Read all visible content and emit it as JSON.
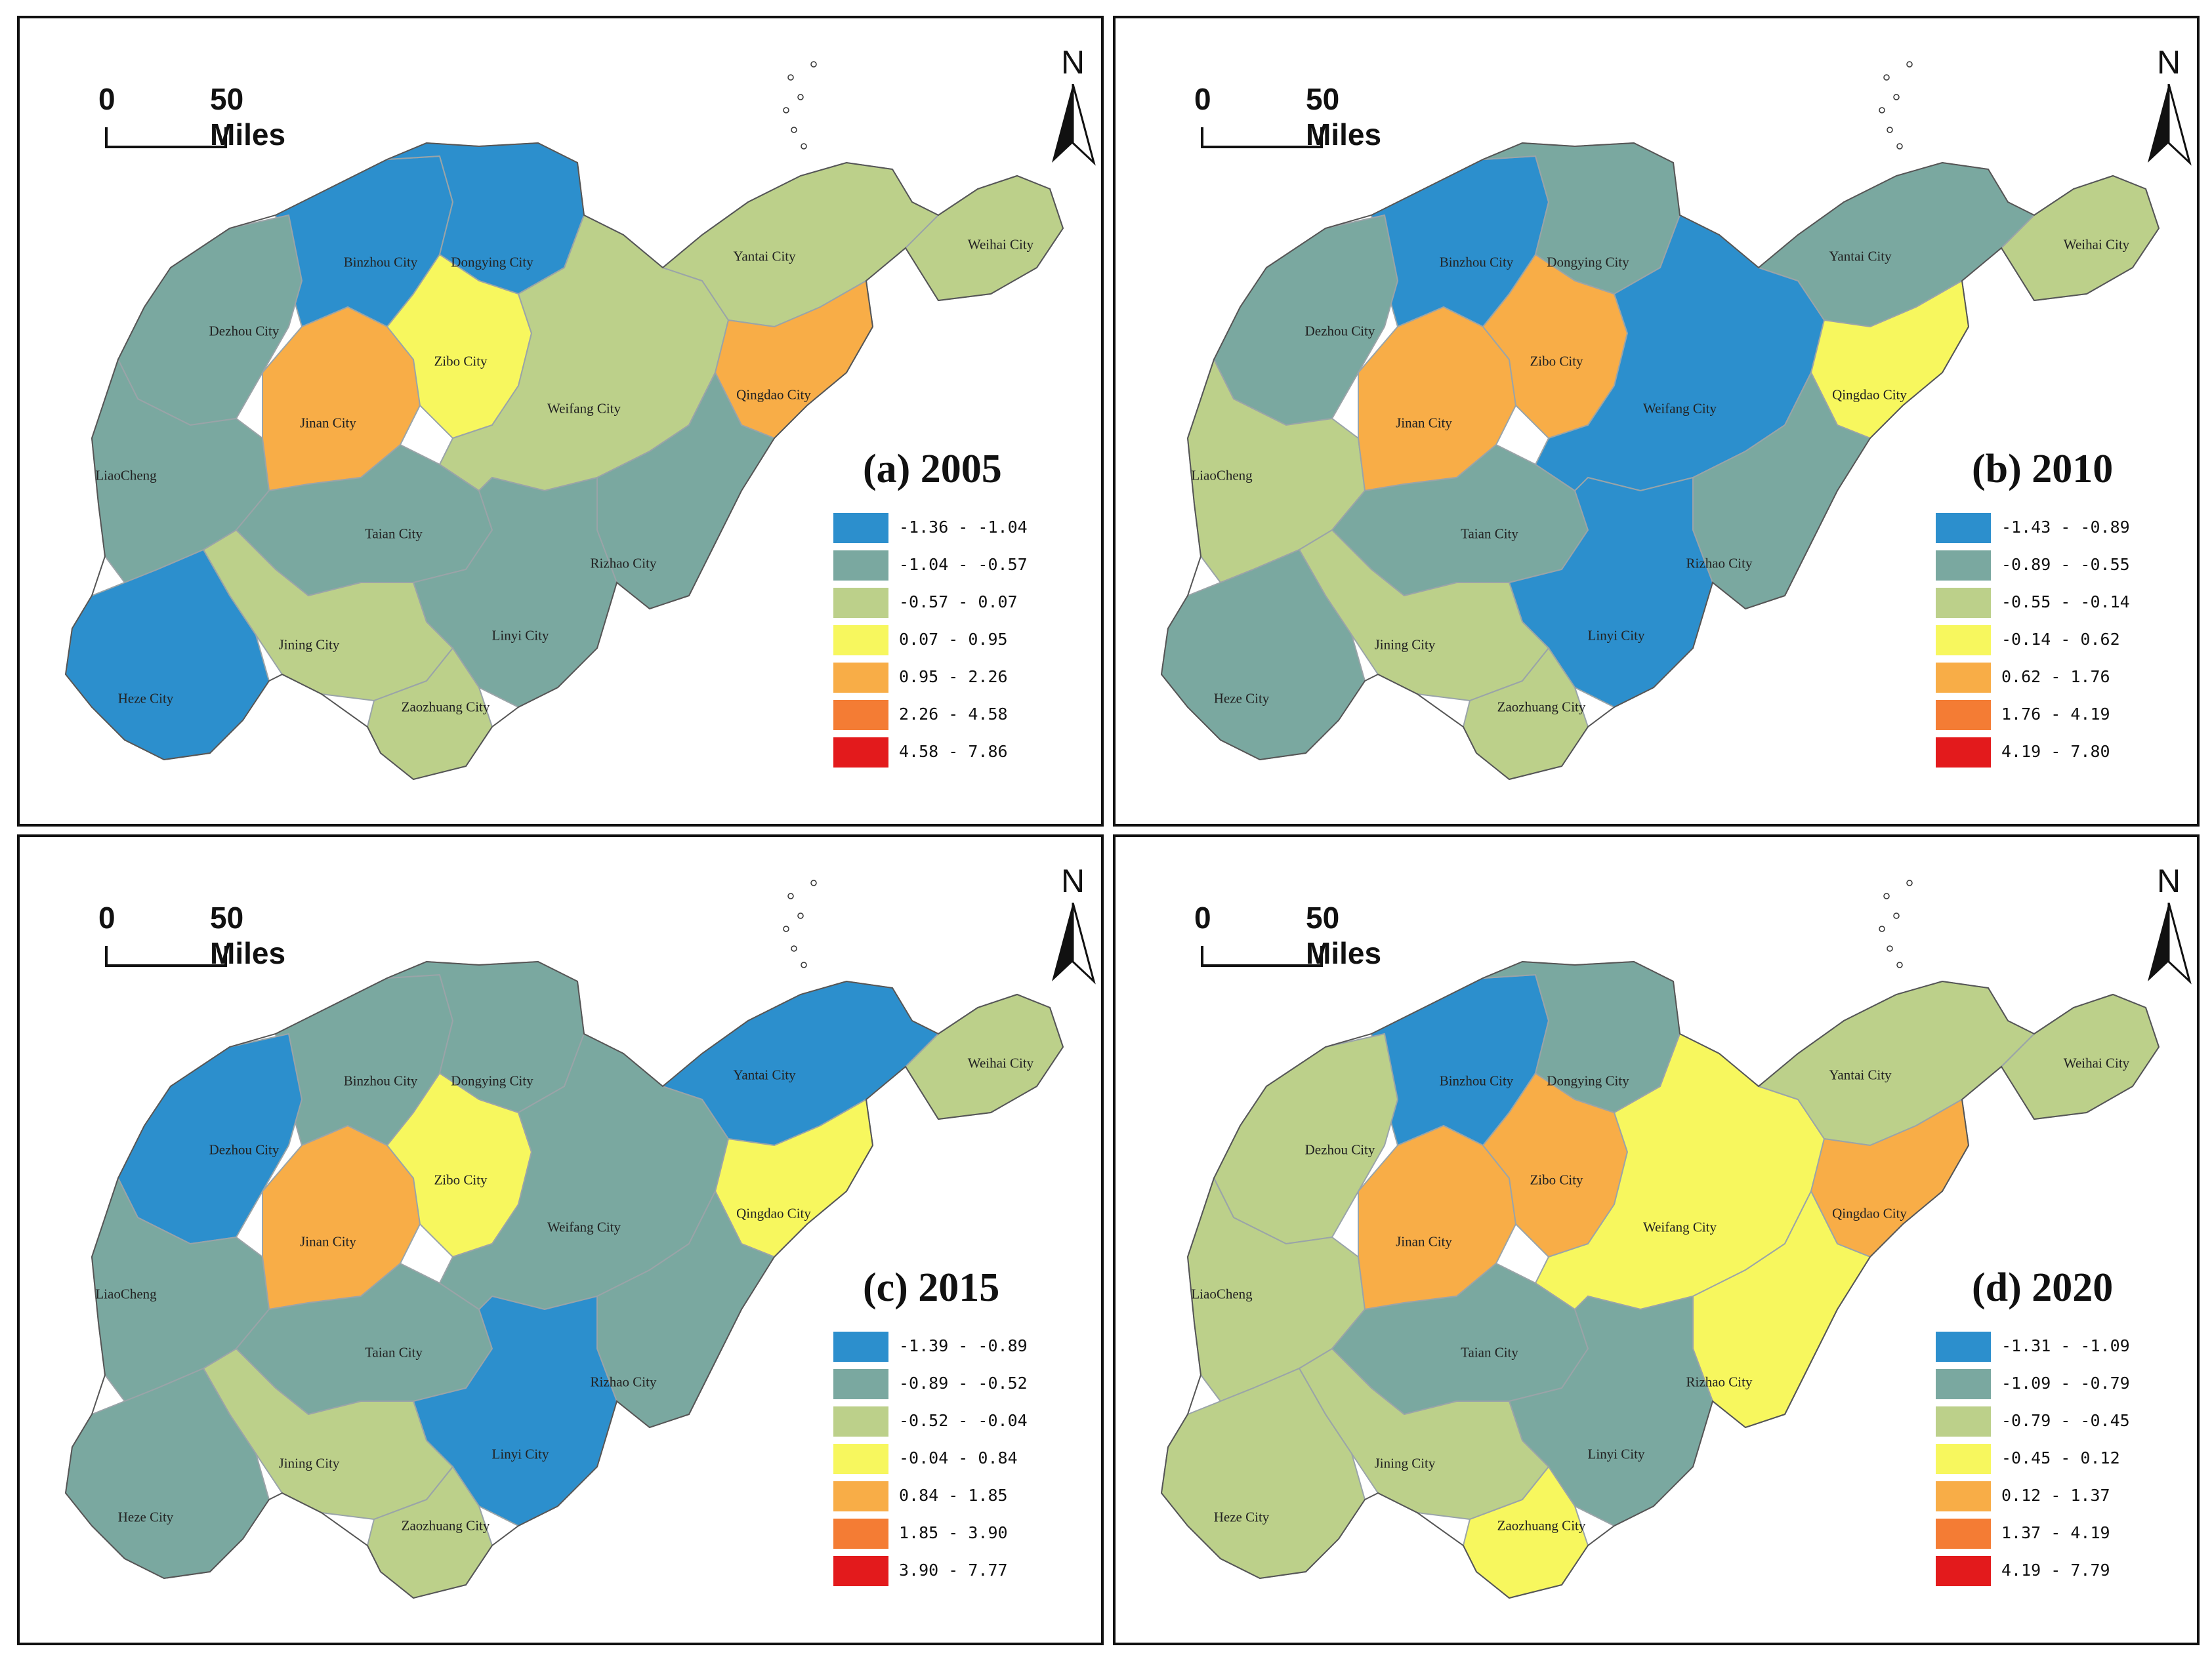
{
  "scale_bar": {
    "zero": "0",
    "distance": "50 Miles"
  },
  "north_label": "N",
  "colors": {
    "class1": "#2c8fcd",
    "class2": "#7aa8a0",
    "class3": "#bcd08a",
    "class4": "#f7f75e",
    "class5": "#f8ad47",
    "class6": "#f47c34",
    "class7": "#e31a1c",
    "border": "#9aa4a8",
    "panel_border": "#111111"
  },
  "city_labels": {
    "binzhou": "Binzhou City",
    "dongying": "Dongying City",
    "yantai": "Yantai City",
    "weihai": "Weihai City",
    "dezhou": "Dezhou City",
    "zibo": "Zibo City",
    "qingdao": "Qingdao City",
    "jinan": "Jinan City",
    "weifang": "Weifang City",
    "liaocheng": "LiaoCheng",
    "taian": "Taian City",
    "rizhao": "Rizhao City",
    "jining": "Jining City",
    "linyi": "Linyi City",
    "heze": "Heze City",
    "zaozhuang": "Zaozhuang City"
  },
  "panels": [
    {
      "title": "(a) 2005",
      "legend": [
        "-1.36 - -1.04",
        "-1.04 - -0.57",
        "-0.57 - 0.07",
        "0.07 - 0.95",
        "0.95 - 2.26",
        "2.26 - 4.58",
        "4.58 - 7.86"
      ],
      "city_classes": {
        "binzhou": 1,
        "dongying": 1,
        "yantai": 3,
        "weihai": 3,
        "dezhou": 2,
        "zibo": 4,
        "qingdao": 5,
        "jinan": 5,
        "weifang": 3,
        "liaocheng": 2,
        "taian": 2,
        "rizhao": 2,
        "jining": 3,
        "linyi": 2,
        "heze": 1,
        "zaozhuang": 3
      }
    },
    {
      "title": "(b) 2010",
      "legend": [
        "-1.43 - -0.89",
        "-0.89 - -0.55",
        "-0.55 - -0.14",
        "-0.14 - 0.62",
        "0.62 - 1.76",
        "1.76 - 4.19",
        "4.19 - 7.80"
      ],
      "city_classes": {
        "binzhou": 1,
        "dongying": 2,
        "yantai": 2,
        "weihai": 3,
        "dezhou": 2,
        "zibo": 5,
        "qingdao": 4,
        "jinan": 5,
        "weifang": 1,
        "liaocheng": 3,
        "taian": 2,
        "rizhao": 2,
        "jining": 3,
        "linyi": 1,
        "heze": 2,
        "zaozhuang": 3
      }
    },
    {
      "title": "(c) 2015",
      "legend": [
        "-1.39 - -0.89",
        "-0.89 - -0.52",
        "-0.52 - -0.04",
        "-0.04 - 0.84",
        "0.84 - 1.85",
        "1.85 - 3.90",
        "3.90 - 7.77"
      ],
      "city_classes": {
        "binzhou": 2,
        "dongying": 2,
        "yantai": 1,
        "weihai": 3,
        "dezhou": 1,
        "zibo": 4,
        "qingdao": 4,
        "jinan": 5,
        "weifang": 2,
        "liaocheng": 2,
        "taian": 2,
        "rizhao": 2,
        "jining": 3,
        "linyi": 1,
        "heze": 2,
        "zaozhuang": 3
      }
    },
    {
      "title": "(d) 2020",
      "legend": [
        "-1.31 - -1.09",
        "-1.09 - -0.79",
        "-0.79 - -0.45",
        "-0.45 - 0.12",
        "0.12 - 1.37",
        "1.37 - 4.19",
        "4.19 - 7.79"
      ],
      "city_classes": {
        "binzhou": 1,
        "dongying": 2,
        "yantai": 3,
        "weihai": 3,
        "dezhou": 3,
        "zibo": 5,
        "qingdao": 5,
        "jinan": 5,
        "weifang": 4,
        "liaocheng": 3,
        "taian": 2,
        "rizhao": 4,
        "jining": 3,
        "linyi": 2,
        "heze": 3,
        "zaozhuang": 4
      }
    }
  ]
}
